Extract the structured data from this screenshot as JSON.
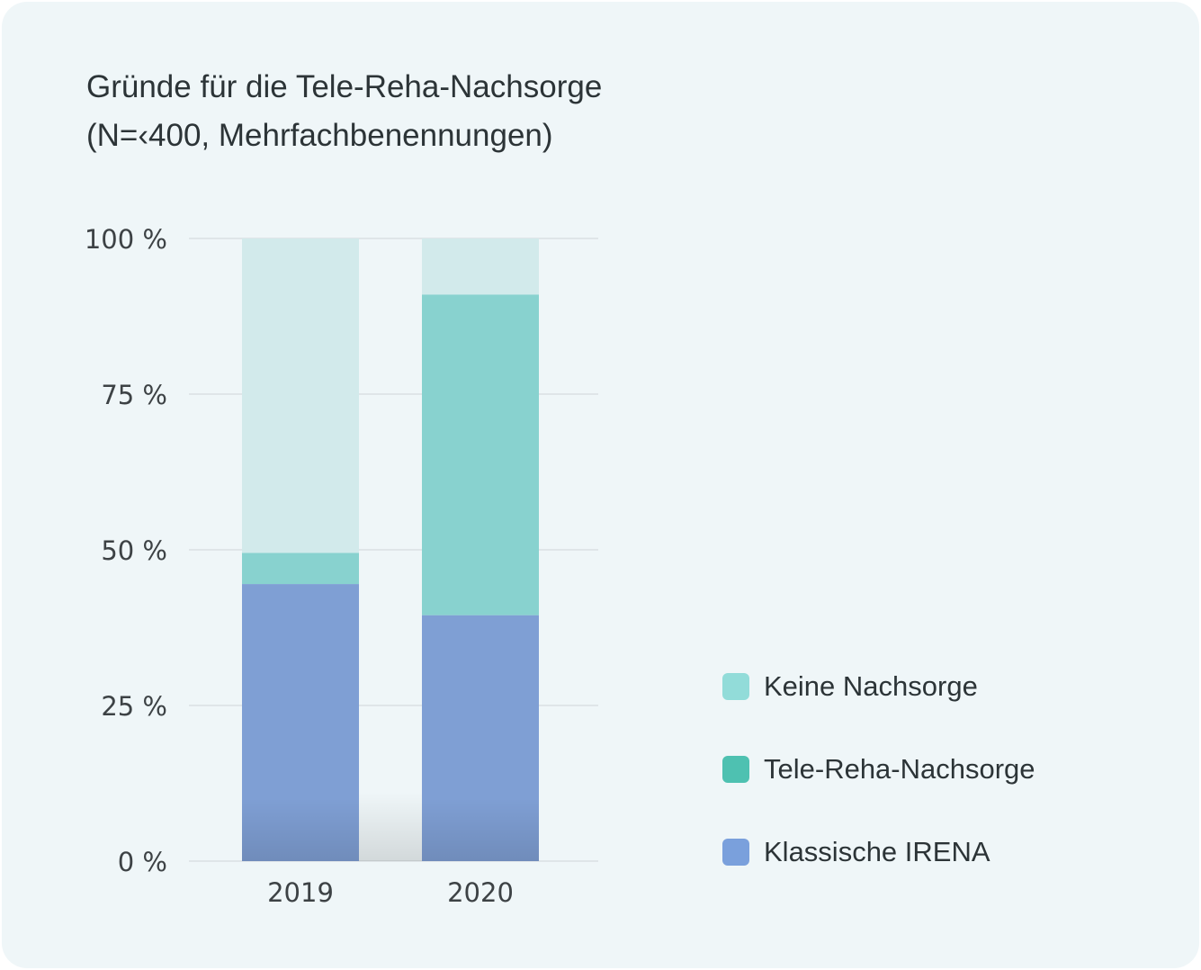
{
  "chart_data": {
    "type": "bar",
    "stacked": true,
    "title": [
      "Gründe für die Tele-Reha-Nachsorge",
      "(N=‹400, Mehrfachbenennungen)"
    ],
    "categories": [
      "2019",
      "2020"
    ],
    "series": [
      {
        "name": "Klassische IRENA",
        "values": [
          44.5,
          39.5
        ],
        "color": "#7f9fd4"
      },
      {
        "name": "Tele-Reha-Nachsorge",
        "values": [
          5,
          51.5
        ],
        "color": "#88d2cf"
      },
      {
        "name": "Keine Nachsorge",
        "values": [
          50.5,
          9
        ],
        "color": "#d2eaeb"
      }
    ],
    "y_ticks": [
      "0 %",
      "25 %",
      "50 %",
      "75 %",
      "100 %"
    ],
    "ylim": [
      0,
      100
    ],
    "grid": true,
    "legend": {
      "position": "right",
      "items": [
        {
          "label": "Keine Nachsorge",
          "color": "#92dcd9"
        },
        {
          "label": "Tele-Reha-Nachsorge",
          "color": "#4ec1b1"
        },
        {
          "label": "Klassische IRENA",
          "color": "#7aa0dc"
        }
      ]
    }
  }
}
